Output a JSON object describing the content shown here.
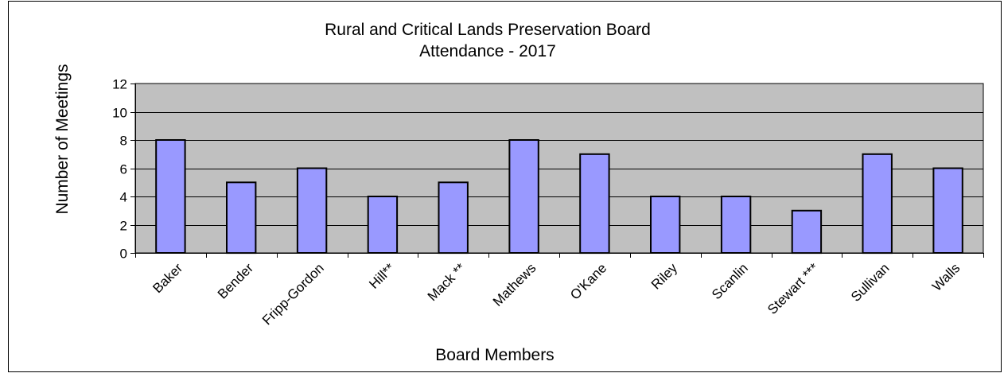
{
  "chart_data": {
    "type": "bar",
    "title": "Rural and Critical Lands Preservation Board",
    "subtitle": "Attendance - 2017",
    "xlabel": "Board Members",
    "ylabel": "Number of Meetings",
    "ylim": [
      0,
      12
    ],
    "yticks": [
      0,
      2,
      4,
      6,
      8,
      10,
      12
    ],
    "grid": true,
    "legend": "none",
    "categories": [
      "Baker",
      "Bender",
      "Fripp-Gordon",
      "Hill**",
      "Mack **",
      "Mathews",
      "O'Kane",
      "Riley",
      "Scanlin",
      "Stewart ***",
      "Sullivan",
      "Walls"
    ],
    "values": [
      8,
      5,
      6,
      4,
      5,
      8,
      7,
      4,
      4,
      3,
      7,
      6
    ],
    "colors": {
      "bar": "#9999ff",
      "plot_background": "#c0c0c0",
      "axis": "#000000",
      "gridline": "#000000",
      "frame": "#000000"
    }
  }
}
